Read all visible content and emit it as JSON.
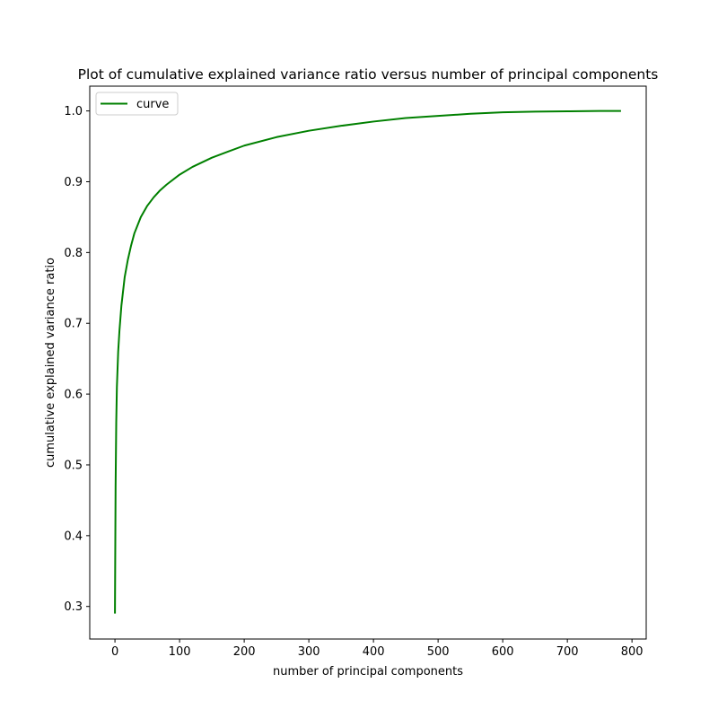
{
  "chart_data": {
    "type": "line",
    "title": "Plot of cumulative explained variance ratio versus number of principal components",
    "xlabel": "number of principal components",
    "ylabel": "cumulative explained variance ratio",
    "xlim": [
      -39,
      822
    ],
    "ylim": [
      0.254,
      1.035
    ],
    "xticks": [
      0,
      100,
      200,
      300,
      400,
      500,
      600,
      700,
      800
    ],
    "yticks": [
      0.3,
      0.4,
      0.5,
      0.6,
      0.7,
      0.8,
      0.9,
      1.0
    ],
    "xtick_labels": [
      "0",
      "100",
      "200",
      "300",
      "400",
      "500",
      "600",
      "700",
      "800"
    ],
    "ytick_labels": [
      "0.3",
      "0.4",
      "0.5",
      "0.6",
      "0.7",
      "0.8",
      "0.9",
      "1.0"
    ],
    "grid": false,
    "legend_position": "top-left",
    "series": [
      {
        "name": "curve",
        "color": "#008000",
        "x": [
          0,
          1,
          2,
          3,
          5,
          7,
          10,
          15,
          20,
          25,
          30,
          40,
          50,
          60,
          70,
          80,
          100,
          120,
          150,
          200,
          250,
          300,
          350,
          400,
          450,
          500,
          550,
          600,
          650,
          700,
          750,
          783
        ],
        "y": [
          0.29,
          0.47,
          0.56,
          0.61,
          0.66,
          0.69,
          0.725,
          0.765,
          0.79,
          0.81,
          0.827,
          0.85,
          0.866,
          0.878,
          0.888,
          0.896,
          0.91,
          0.921,
          0.934,
          0.951,
          0.963,
          0.972,
          0.979,
          0.985,
          0.99,
          0.993,
          0.996,
          0.998,
          0.999,
          0.9995,
          0.9999,
          1.0
        ]
      }
    ]
  }
}
